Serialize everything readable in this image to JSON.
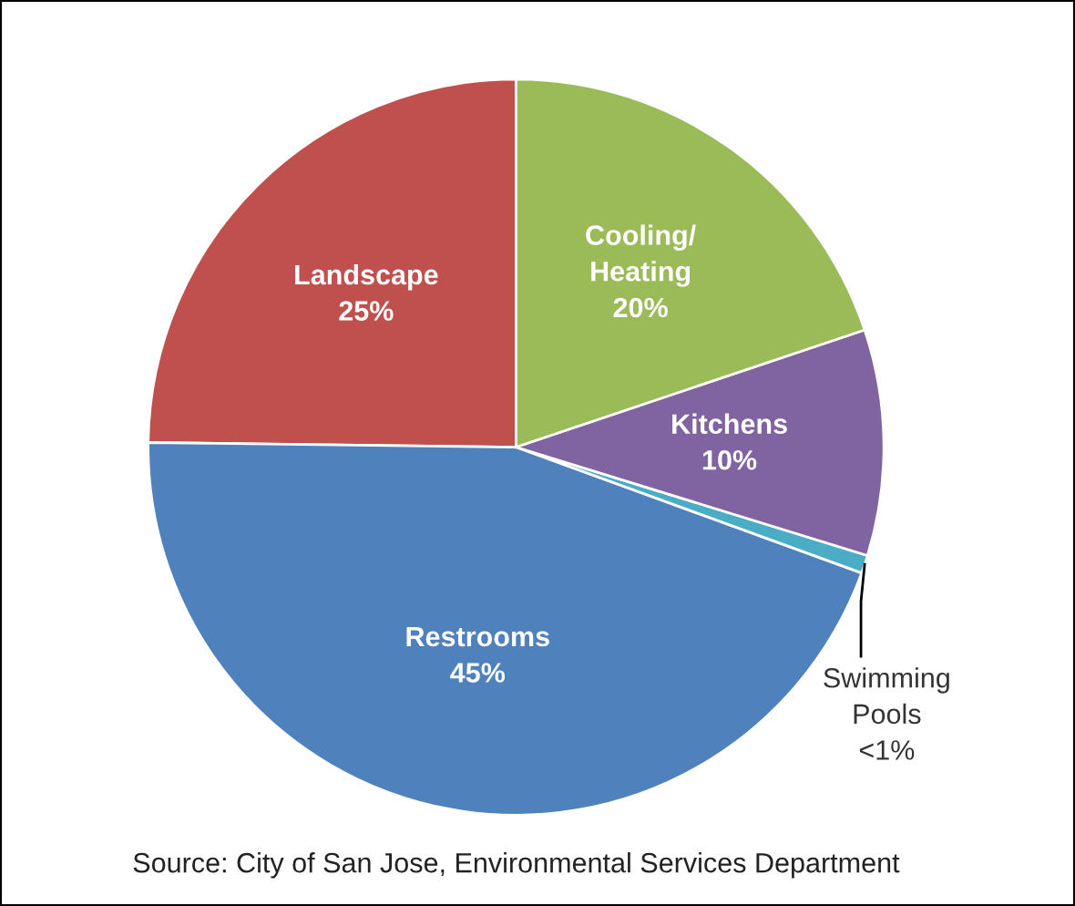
{
  "chart_data": {
    "type": "pie",
    "categories": [
      "Landscape",
      "Restrooms",
      "Swimming\nPools",
      "Kitchens",
      "Cooling/\nHeating"
    ],
    "values": [
      25,
      45,
      0.8,
      10,
      20
    ],
    "colors": [
      "#c0504d",
      "#4f81bd",
      "#4bacc6",
      "#8064a2",
      "#9bbb59"
    ],
    "value_labels": [
      "25%",
      "45%",
      "<1%",
      "10%",
      "20%"
    ],
    "annotations": [
      "Source: City of San Jose, Environmental Services Department"
    ]
  }
}
